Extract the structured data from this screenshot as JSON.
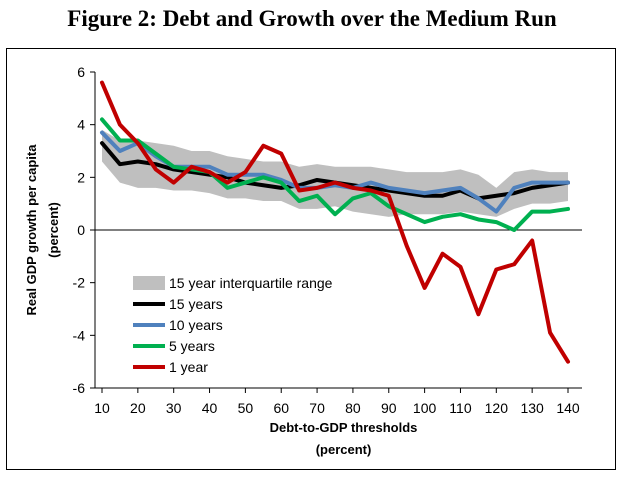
{
  "figure": {
    "title": "Figure 2: Debt and Growth over the Medium Run"
  },
  "chart_data": {
    "type": "line",
    "title": "",
    "xlabel": "Debt-to-GDP thresholds",
    "xlabel_unit": "(percent)",
    "ylabel": "Real GDP growth per capita",
    "ylabel_unit": "(percent)",
    "xlim": [
      10,
      140
    ],
    "ylim": [
      -6,
      6
    ],
    "x_ticks": [
      10,
      20,
      30,
      40,
      50,
      60,
      70,
      80,
      90,
      100,
      110,
      120,
      130,
      140
    ],
    "y_ticks": [
      -6,
      -4,
      -2,
      0,
      2,
      4,
      6
    ],
    "grid": false,
    "legend_position": "lower-left",
    "x": [
      10,
      15,
      20,
      25,
      30,
      35,
      40,
      45,
      50,
      55,
      60,
      65,
      70,
      75,
      80,
      85,
      90,
      95,
      100,
      105,
      110,
      115,
      120,
      125,
      130,
      135,
      140
    ],
    "band": {
      "name": "15 year interquartile range",
      "color": "#bfbfbf",
      "lower": [
        2.6,
        1.8,
        1.6,
        1.6,
        1.5,
        1.5,
        1.4,
        1.2,
        1.2,
        1.1,
        1.1,
        0.8,
        0.8,
        0.9,
        0.7,
        0.6,
        0.5,
        0.6,
        0.6,
        0.6,
        0.7,
        0.6,
        0.5,
        0.8,
        1.0,
        1.0,
        1.1
      ],
      "upper": [
        3.8,
        3.4,
        3.4,
        3.3,
        3.2,
        3.0,
        3.0,
        2.8,
        2.7,
        2.6,
        2.6,
        2.4,
        2.5,
        2.4,
        2.4,
        2.4,
        2.3,
        2.2,
        2.2,
        2.2,
        2.3,
        2.1,
        1.6,
        2.2,
        2.3,
        2.2,
        2.2
      ]
    },
    "series": [
      {
        "name": "15 years",
        "color": "#000000",
        "values": [
          3.3,
          2.5,
          2.6,
          2.5,
          2.3,
          2.2,
          2.1,
          2.0,
          1.8,
          1.7,
          1.6,
          1.7,
          1.9,
          1.8,
          1.7,
          1.6,
          1.5,
          1.4,
          1.3,
          1.3,
          1.5,
          1.2,
          1.3,
          1.4,
          1.6,
          1.7,
          1.8
        ]
      },
      {
        "name": "10 years",
        "color": "#4f81bd",
        "values": [
          3.7,
          3.0,
          3.3,
          2.8,
          2.4,
          2.4,
          2.4,
          2.1,
          2.1,
          2.1,
          1.9,
          1.6,
          1.6,
          1.7,
          1.6,
          1.8,
          1.6,
          1.5,
          1.4,
          1.5,
          1.6,
          1.2,
          0.7,
          1.6,
          1.8,
          1.8,
          1.8
        ]
      },
      {
        "name": "5 years",
        "color": "#00b050",
        "values": [
          4.2,
          3.4,
          3.4,
          2.9,
          2.4,
          2.3,
          2.2,
          1.6,
          1.8,
          2.0,
          1.8,
          1.1,
          1.3,
          0.6,
          1.2,
          1.4,
          0.9,
          0.6,
          0.3,
          0.5,
          0.6,
          0.4,
          0.3,
          0.0,
          0.7,
          0.7,
          0.8
        ]
      },
      {
        "name": "1 year",
        "color": "#c00000",
        "values": [
          5.6,
          4.0,
          3.3,
          2.3,
          1.8,
          2.4,
          2.2,
          1.8,
          2.2,
          3.2,
          2.9,
          1.5,
          1.6,
          1.8,
          1.6,
          1.5,
          1.3,
          -0.6,
          -2.2,
          -0.9,
          -1.4,
          -3.2,
          -1.5,
          -1.3,
          -0.4,
          -3.9,
          -5.0
        ]
      }
    ]
  }
}
